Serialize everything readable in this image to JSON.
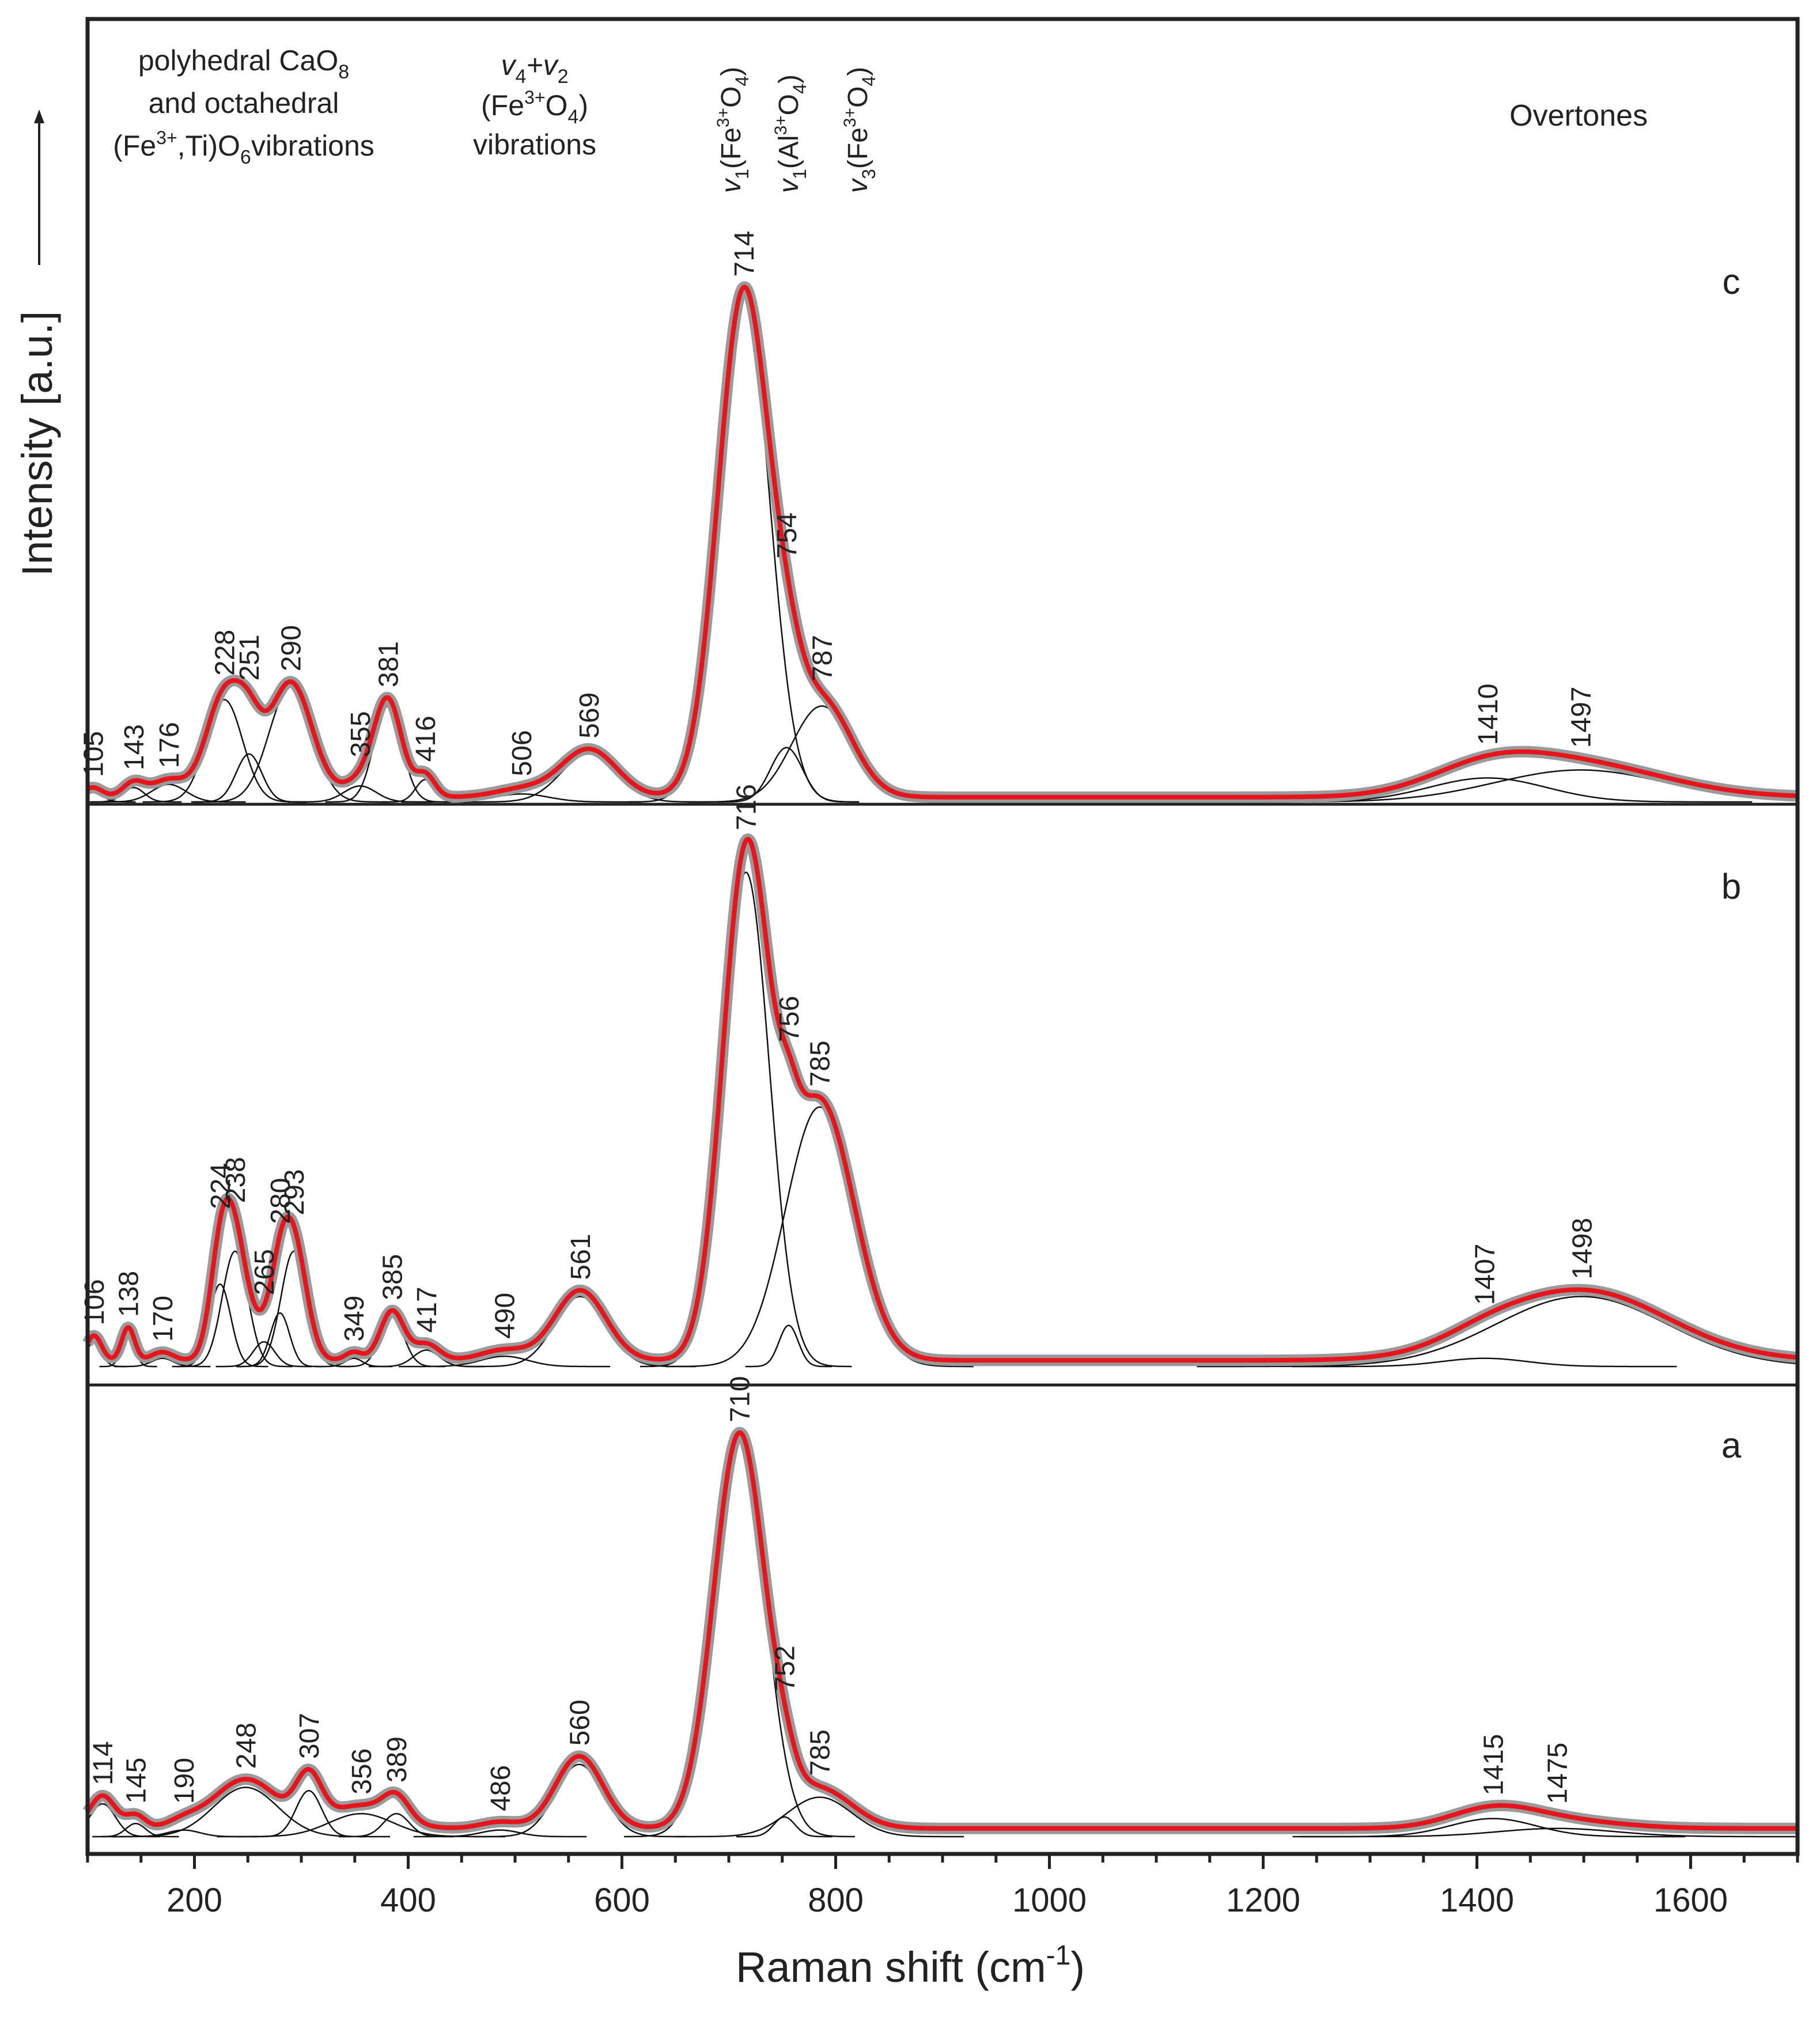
{
  "chart_data": {
    "type": "line",
    "xlabel": "Raman shift (cm",
    "xlabel_sup": "-1",
    "xlabel_end": ")",
    "ylabel": "Intensity [a.u.]",
    "xlim": [
      100,
      1700
    ],
    "xticks": [
      200,
      400,
      600,
      800,
      1000,
      1200,
      1400,
      1600
    ],
    "region_labels": {
      "polyhedral": [
        "polyhedral CaO",
        "and octahedral",
        "(Fe",
        "3+",
        ",Ti)O",
        "vibrations"
      ],
      "polyhedral_subs": [
        "8",
        "6"
      ],
      "v4v2": [
        "v",
        "4",
        "+v",
        "2",
        "(Fe",
        "3+",
        "O",
        "4",
        ")",
        "vibrations"
      ],
      "v1_fe": [
        "v",
        "1",
        "(Fe",
        "3+",
        "O",
        "4",
        ")"
      ],
      "v1_al": [
        "v",
        "1",
        "(Al",
        "3+",
        "O",
        "4",
        ")"
      ],
      "v3_fe": [
        "v",
        "3",
        "(Fe",
        "3+",
        "O",
        "4",
        ")"
      ],
      "overtones": "Overtones"
    },
    "panels": [
      {
        "name": "c",
        "baseline": 0.015,
        "fit_color": "#e8141c",
        "components": [
          {
            "center": 105,
            "height": 0.03,
            "width": 9,
            "label": "105"
          },
          {
            "center": 143,
            "height": 0.045,
            "width": 10,
            "label": "143"
          },
          {
            "center": 176,
            "height": 0.055,
            "width": 16,
            "label": "176"
          },
          {
            "center": 228,
            "height": 0.32,
            "width": 17,
            "label": "228"
          },
          {
            "center": 251,
            "height": 0.15,
            "width": 12,
            "label": "251"
          },
          {
            "center": 290,
            "height": 0.36,
            "width": 20,
            "label": "290"
          },
          {
            "center": 355,
            "height": 0.05,
            "width": 15,
            "label": "355"
          },
          {
            "center": 381,
            "height": 0.3,
            "width": 13,
            "label": "381"
          },
          {
            "center": 416,
            "height": 0.07,
            "width": 9,
            "label": "416"
          },
          {
            "center": 506,
            "height": 0.025,
            "width": 25,
            "label": "506"
          },
          {
            "center": 569,
            "height": 0.15,
            "width": 26,
            "label": "569"
          },
          {
            "center": 714,
            "height": 1.58,
            "width": 24,
            "label": "714"
          },
          {
            "center": 754,
            "height": 0.17,
            "width": 15,
            "label": "754"
          },
          {
            "center": 787,
            "height": 0.3,
            "width": 28,
            "label": "787"
          },
          {
            "center": 1410,
            "height": 0.075,
            "width": 55,
            "label": "1410"
          },
          {
            "center": 1497,
            "height": 0.1,
            "width": 80,
            "label": "1497"
          }
        ]
      },
      {
        "name": "b",
        "baseline": 0.015,
        "fit_color": "#e8141c",
        "components": [
          {
            "center": 106,
            "height": 0.06,
            "width": 7,
            "label": "106"
          },
          {
            "center": 138,
            "height": 0.08,
            "width": 6,
            "label": "138"
          },
          {
            "center": 170,
            "height": 0.02,
            "width": 10,
            "label": "170"
          },
          {
            "center": 224,
            "height": 0.2,
            "width": 10,
            "label": "224"
          },
          {
            "center": 238,
            "height": 0.28,
            "width": 12,
            "label": "238"
          },
          {
            "center": 265,
            "height": 0.06,
            "width": 10,
            "label": "265"
          },
          {
            "center": 280,
            "height": 0.13,
            "width": 9,
            "label": "280"
          },
          {
            "center": 293,
            "height": 0.28,
            "width": 12,
            "label": "293"
          },
          {
            "center": 349,
            "height": 0.02,
            "width": 8,
            "label": "349"
          },
          {
            "center": 385,
            "height": 0.12,
            "width": 11,
            "label": "385"
          },
          {
            "center": 417,
            "height": 0.04,
            "width": 12,
            "label": "417"
          },
          {
            "center": 490,
            "height": 0.025,
            "width": 22,
            "label": "490"
          },
          {
            "center": 561,
            "height": 0.17,
            "width": 24,
            "label": "561"
          },
          {
            "center": 716,
            "height": 1.2,
            "width": 22,
            "label": "716"
          },
          {
            "center": 756,
            "height": 0.1,
            "width": 9,
            "label": "756"
          },
          {
            "center": 785,
            "height": 0.63,
            "width": 32,
            "label": "785"
          },
          {
            "center": 1407,
            "height": 0.02,
            "width": 40,
            "label": "1407"
          },
          {
            "center": 1498,
            "height": 0.17,
            "width": 80,
            "label": "1498"
          }
        ]
      },
      {
        "name": "a",
        "baseline": 0.025,
        "fit_color": "#e8141c",
        "components": [
          {
            "center": 114,
            "height": 0.1,
            "width": 12,
            "label": "114"
          },
          {
            "center": 145,
            "height": 0.04,
            "width": 9,
            "label": "145"
          },
          {
            "center": 190,
            "height": 0.02,
            "width": 15,
            "label": "190"
          },
          {
            "center": 248,
            "height": 0.15,
            "width": 30,
            "label": "248"
          },
          {
            "center": 307,
            "height": 0.14,
            "width": 12,
            "label": "307"
          },
          {
            "center": 356,
            "height": 0.07,
            "width": 30,
            "label": "356"
          },
          {
            "center": 389,
            "height": 0.07,
            "width": 12,
            "label": "389"
          },
          {
            "center": 486,
            "height": 0.02,
            "width": 18,
            "label": "486"
          },
          {
            "center": 560,
            "height": 0.22,
            "width": 22,
            "label": "560"
          },
          {
            "center": 710,
            "height": 1.2,
            "width": 24,
            "label": "710"
          },
          {
            "center": 752,
            "height": 0.06,
            "width": 10,
            "label": "752"
          },
          {
            "center": 785,
            "height": 0.12,
            "width": 30,
            "label": "785"
          },
          {
            "center": 1415,
            "height": 0.055,
            "width": 40,
            "label": "1415"
          },
          {
            "center": 1475,
            "height": 0.025,
            "width": 55,
            "label": "1475"
          }
        ]
      }
    ]
  }
}
